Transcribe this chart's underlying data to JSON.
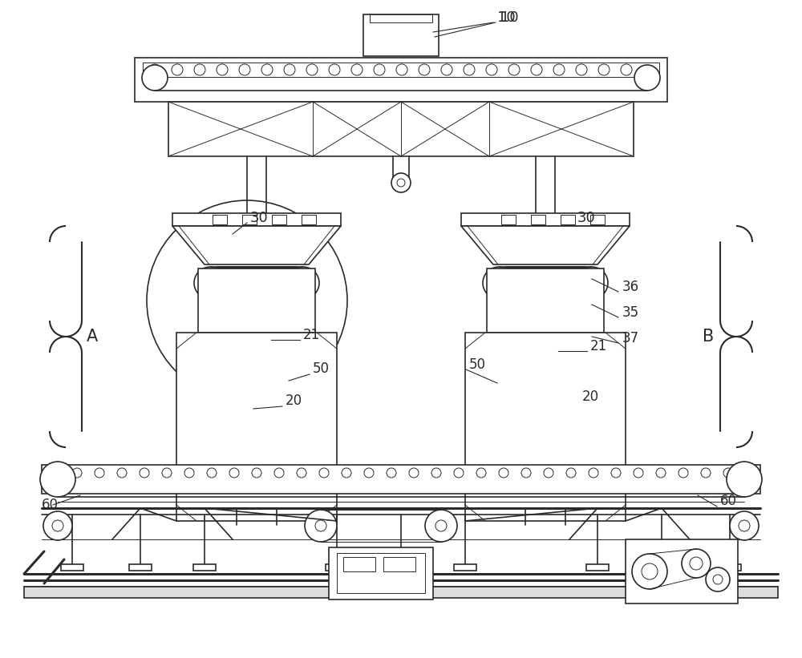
{
  "bg_color": "#ffffff",
  "line_color": "#2a2a2a",
  "fig_width": 10.0,
  "fig_height": 8.21
}
